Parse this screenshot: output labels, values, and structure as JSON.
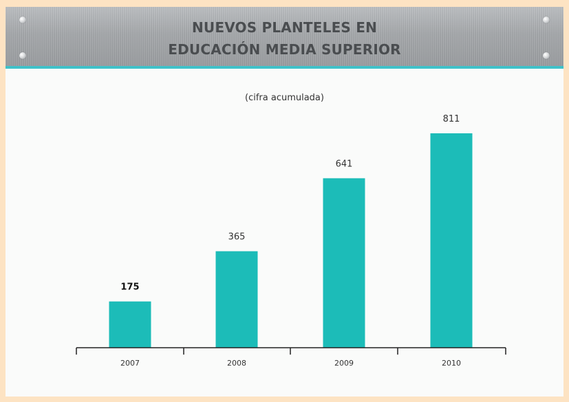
{
  "header": {
    "title_line1": "NUEVOS PLANTELES EN",
    "title_line2": "EDUCACIÓN MEDIA SUPERIOR"
  },
  "subtitle": "(cifra acumulada)",
  "colors": {
    "bar": "#1cbcb8",
    "accent_line": "#3fc1c9",
    "page_background": "#fde3c3",
    "panel_background": "#fafbfa"
  },
  "chart_data": {
    "type": "bar",
    "title": "NUEVOS PLANTELES EN EDUCACIÓN MEDIA SUPERIOR",
    "subtitle": "(cifra acumulada)",
    "categories": [
      "2007",
      "2008",
      "2009",
      "2010"
    ],
    "values": [
      175,
      365,
      641,
      811
    ],
    "data_labels": [
      "175",
      "365",
      "641",
      "811"
    ],
    "xlabel": "",
    "ylabel": "",
    "ylim": [
      0,
      1000
    ],
    "grid": false,
    "legend": "none"
  }
}
